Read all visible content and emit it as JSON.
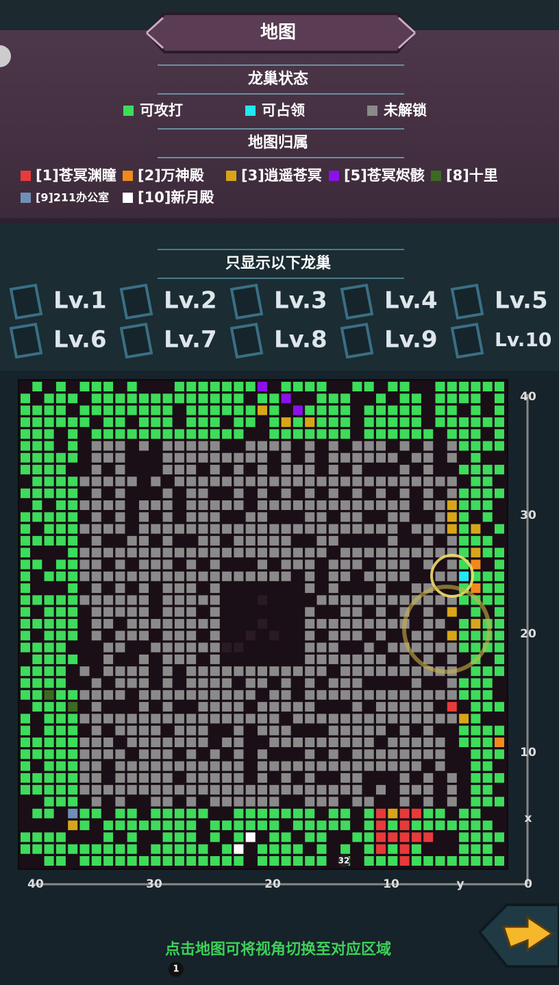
{
  "header": {
    "title": "地图"
  },
  "dragon_status": {
    "title": "龙巢状态",
    "legend": [
      {
        "label": "可攻打",
        "color": "#3ddc5a"
      },
      {
        "label": "可占领",
        "color": "#22e8f2"
      },
      {
        "label": "未解锁",
        "color": "#8a8a8a"
      }
    ]
  },
  "ownership": {
    "title": "地图归属",
    "legend": [
      {
        "label": "[1]苍冥渊瞳",
        "color": "#e83a3a"
      },
      {
        "label": "[2]万神殿",
        "color": "#f08a1c"
      },
      {
        "label": "[3]逍遥苍冥",
        "color": "#d7a618"
      },
      {
        "label": "[5]苍冥烬骸",
        "color": "#8a12e8"
      },
      {
        "label": "[8]十里",
        "color": "#3c6a22"
      },
      {
        "label": "[9]211办公室",
        "color": "#6f8fb8"
      },
      {
        "label": "[10]新月殿",
        "color": "#ffffff"
      }
    ]
  },
  "filter": {
    "title": "只显示以下龙巢",
    "levels": [
      "Lv.1",
      "Lv.2",
      "Lv.3",
      "Lv.4",
      "Lv.5",
      "Lv.6",
      "Lv.7",
      "Lv.8",
      "Lv.9",
      "Lv.10"
    ]
  },
  "map": {
    "right_labels": [
      "40",
      "30",
      "20",
      "10",
      "x",
      "0"
    ],
    "bottom_labels": [
      "40",
      "30",
      "20",
      "10",
      "y"
    ],
    "marker": "32"
  },
  "hint": "点击地图可将视角切换至对应区域",
  "badge": "1"
}
